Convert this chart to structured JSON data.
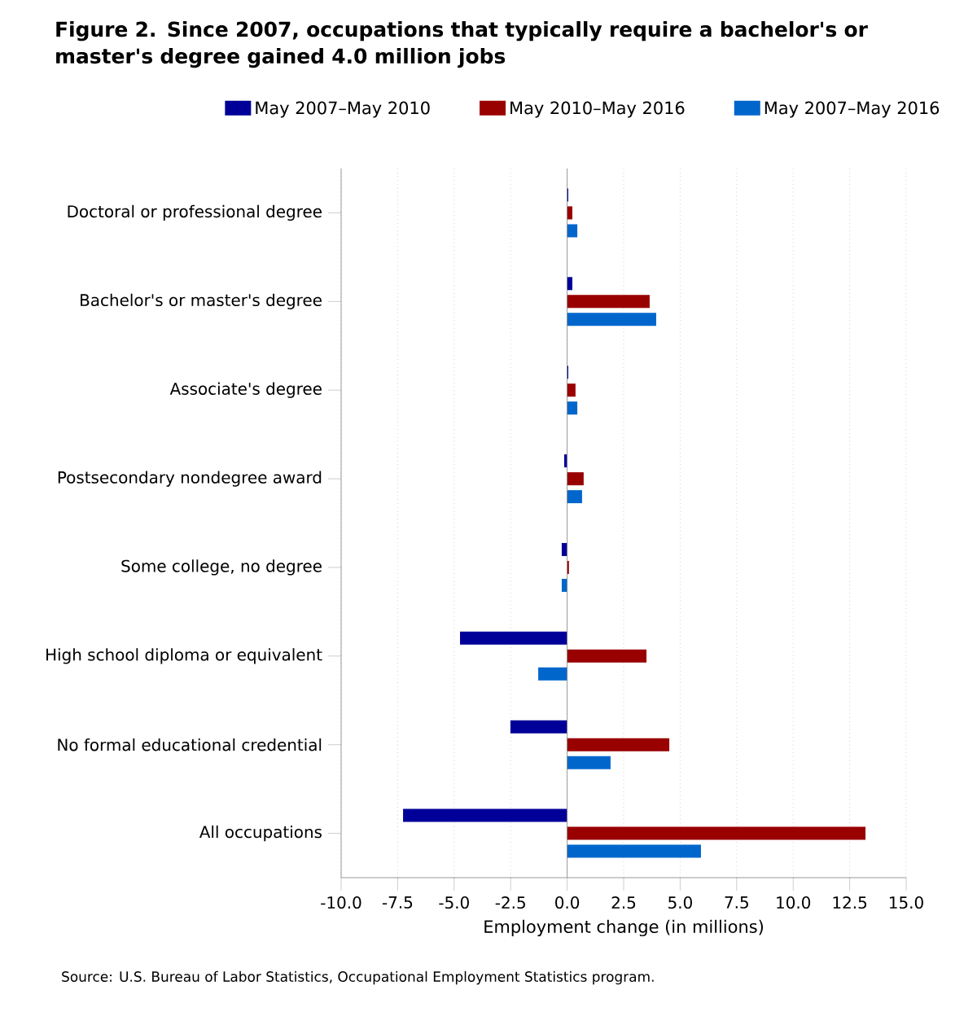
{
  "chart_data": {
    "type": "bar",
    "orientation": "horizontal",
    "title": "Figure 2. Since 2007, occupations that typically require a bachelor's or master's degree gained 4.0 million jobs",
    "xlabel": "Employment change (in millions)",
    "categories": [
      "Doctoral or professional degree",
      "Bachelor's or master's degree",
      "Associate's degree",
      "Postsecondary nondegree award",
      "Some college, no degree",
      "High school diploma or equivalent",
      "No formal educational credential",
      "All occupations"
    ],
    "series": [
      {
        "name": "May 2007–May 2010",
        "color": "#000099",
        "values": [
          0.05,
          0.23,
          0.05,
          -0.13,
          -0.24,
          -4.74,
          -2.51,
          -7.26
        ]
      },
      {
        "name": "May 2010–May 2016",
        "color": "#990000",
        "values": [
          0.23,
          3.65,
          0.37,
          0.73,
          0.08,
          3.51,
          4.52,
          13.2
        ]
      },
      {
        "name": "May 2007–May 2016",
        "color": "#0066cc",
        "values": [
          0.45,
          3.94,
          0.45,
          0.66,
          -0.24,
          -1.28,
          1.92,
          5.92
        ]
      }
    ],
    "xlim": [
      -10,
      15
    ],
    "xticks": [
      {
        "value": -10,
        "label": "-10.0"
      },
      {
        "value": -7.5,
        "label": "-7.5"
      },
      {
        "value": -5,
        "label": "-5.0"
      },
      {
        "value": -2.5,
        "label": "-2.5"
      },
      {
        "value": 0,
        "label": "0.0"
      },
      {
        "value": 2.5,
        "label": "2.5"
      },
      {
        "value": 5,
        "label": "5.0"
      },
      {
        "value": 7.5,
        "label": "7.5"
      },
      {
        "value": 10,
        "label": "10.0"
      },
      {
        "value": 12.5,
        "label": "12.5"
      },
      {
        "value": 15,
        "label": "15.0"
      }
    ],
    "grid": "x",
    "legend": "top",
    "annotations": [
      "Source: U.S. Bureau of Labor Statistics, Occupational Employment Statistics program."
    ]
  }
}
